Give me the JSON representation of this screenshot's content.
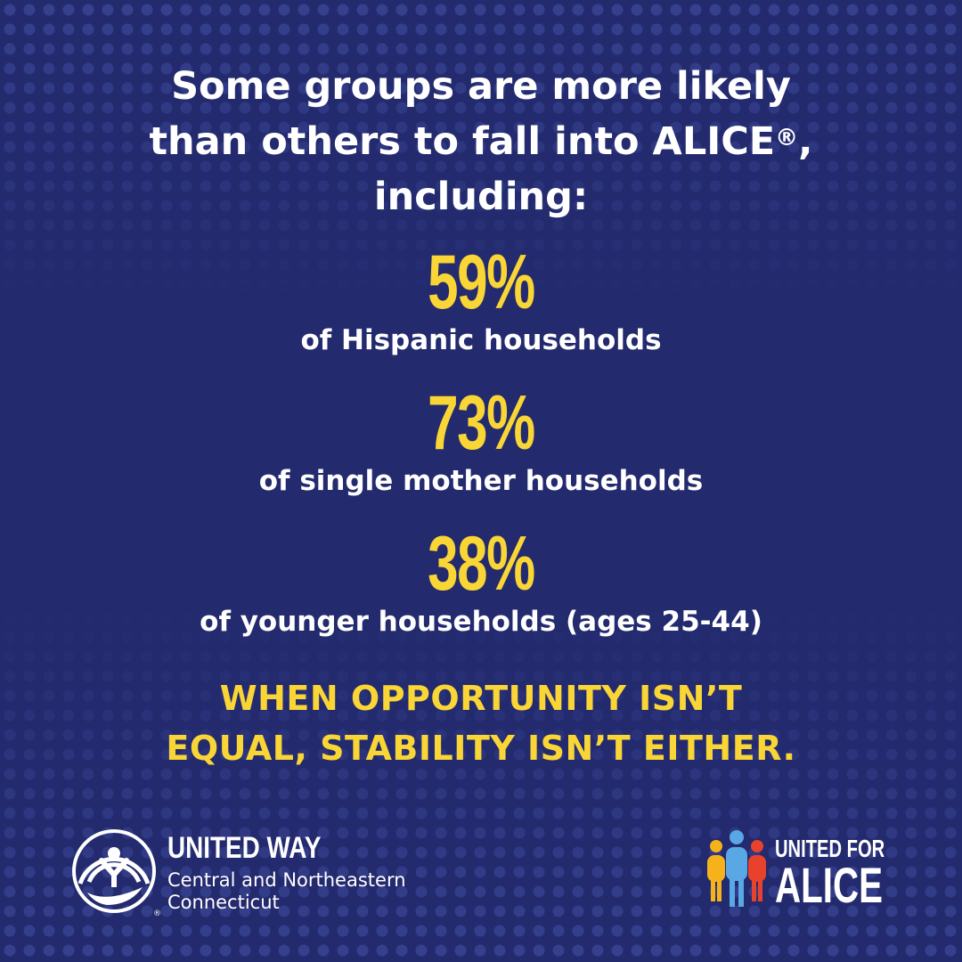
{
  "headline": {
    "line1": "Some groups are more likely",
    "line2": "than others to fall into ALICE",
    "registered": "®",
    "line2_end": ",",
    "line3": "including:"
  },
  "stats": [
    {
      "value": "59%",
      "label": "of Hispanic households"
    },
    {
      "value": "73%",
      "label": "of single mother households"
    },
    {
      "value": "38%",
      "label": "of younger households (ages 25-44)"
    }
  ],
  "tagline": {
    "line1": "WHEN OPPORTUNITY ISN’T",
    "line2": "EQUAL, STABILITY ISN’T EITHER."
  },
  "united_way_logo": {
    "name": "UNITED WAY",
    "sub1": "Central and Northeastern",
    "sub2": "Connecticut",
    "icon": "united-way-hand-person-rainbow-icon"
  },
  "united_for_alice_logo": {
    "top": "UNITED FOR",
    "bottom": "ALICE",
    "icon": "three-people-figures-icon"
  },
  "colors": {
    "background": "#232a6e",
    "accent_yellow": "#f9d535",
    "text_white": "#ffffff"
  }
}
